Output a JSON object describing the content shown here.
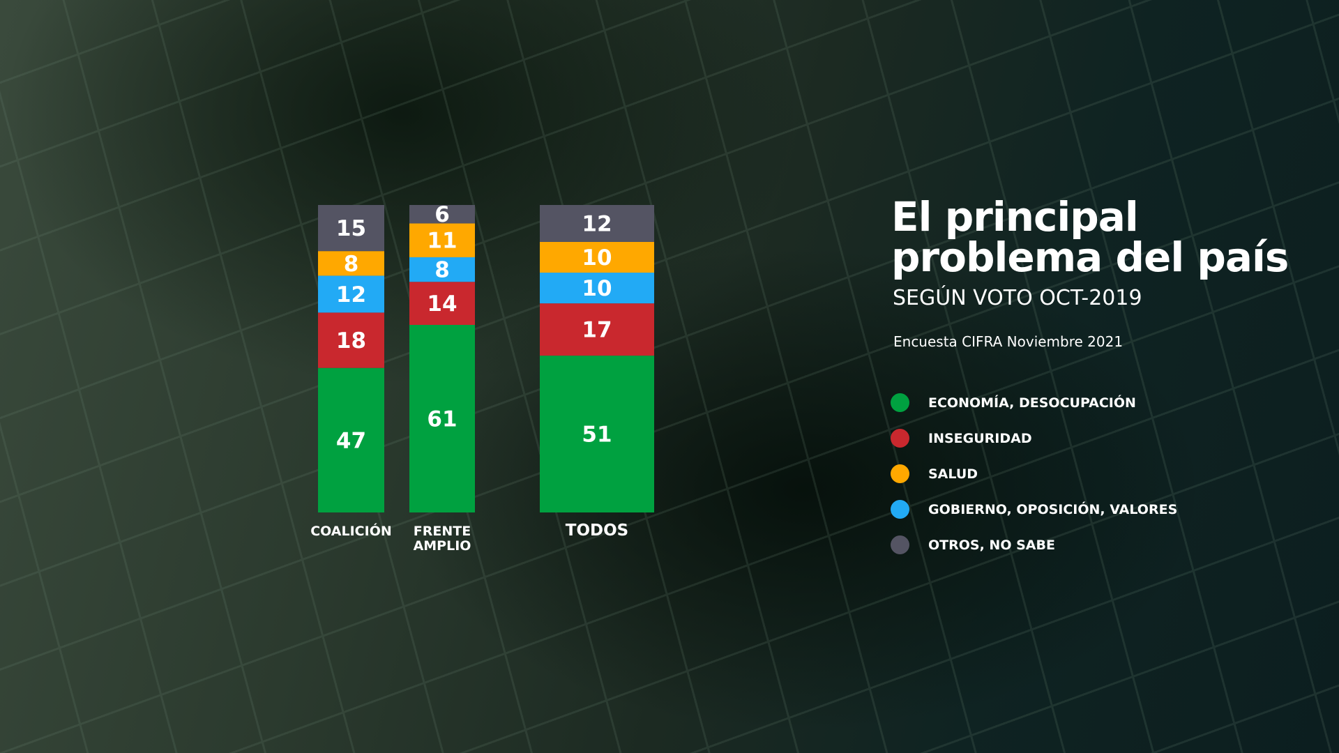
{
  "title_line1": "El principal",
  "title_line2": "problema del país",
  "subtitle": "SEGÚN VOTO OCT-2019",
  "source": "Encuesta CIFRA Noviembre 2021",
  "chart_data": {
    "type": "bar",
    "stacked": true,
    "unit": "%",
    "categories": [
      "COALICIÓN",
      "FRENTE AMPLIO",
      "TODOS"
    ],
    "series": [
      {
        "name": "ECONOMÍA, DESOCUPACIÓN",
        "color": "#00a140",
        "values": [
          47,
          61,
          51
        ]
      },
      {
        "name": "INSEGURIDAD",
        "color": "#c9282e",
        "values": [
          18,
          14,
          17
        ]
      },
      {
        "name": "GOBIERNO, OPOSICIÓN, VALORES",
        "color": "#22aaf5",
        "values": [
          12,
          8,
          10
        ]
      },
      {
        "name": "SALUD",
        "color": "#ffa800",
        "values": [
          8,
          11,
          10
        ]
      },
      {
        "name": "OTROS, NO SABE",
        "color": "#545463",
        "values": [
          15,
          6,
          12
        ]
      }
    ],
    "legend_order": [
      "ECONOMÍA, DESOCUPACIÓN",
      "INSEGURIDAD",
      "SALUD",
      "GOBIERNO, OPOSICIÓN, VALORES",
      "OTROS, NO SABE"
    ],
    "ylim": [
      0,
      100
    ],
    "grid": false,
    "legend_position": "right"
  }
}
